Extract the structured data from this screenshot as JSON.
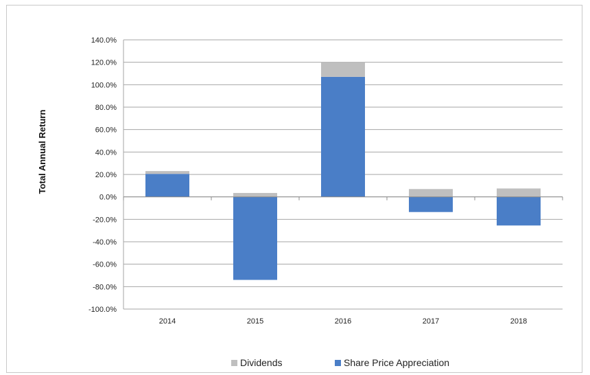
{
  "chart_data": {
    "type": "bar",
    "stacked": true,
    "title": "",
    "xlabel": "",
    "ylabel": "Total Annual Return",
    "categories": [
      "2014",
      "2015",
      "2016",
      "2017",
      "2018"
    ],
    "ylim": [
      -100,
      140
    ],
    "ytick_step": 20,
    "ytick_format": "percent_1dp",
    "grid": true,
    "legend_position": "bottom",
    "series": [
      {
        "name": "Share Price Appreciation",
        "color": "#4A7EC7",
        "values": [
          20.5,
          -74.0,
          107.0,
          -13.5,
          -25.5
        ]
      },
      {
        "name": "Dividends",
        "color": "#BFBFBF",
        "values": [
          2.5,
          3.5,
          13.0,
          7.0,
          7.5
        ]
      }
    ],
    "legend_order": [
      "Dividends",
      "Share Price Appreciation"
    ]
  }
}
